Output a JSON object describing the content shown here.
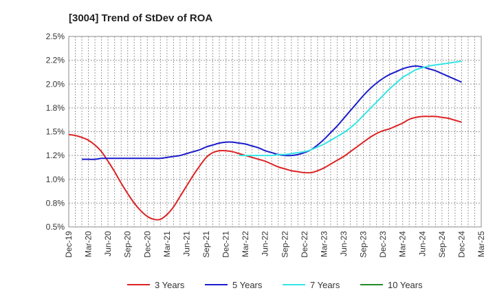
{
  "chart_data": {
    "type": "line",
    "title": "[3004]  Trend of StDev of ROA",
    "xlabel": "",
    "ylabel": "",
    "ylim": [
      0.5,
      2.5
    ],
    "yticks": [
      "0.5%",
      "0.8%",
      "1.0%",
      "1.2%",
      "1.5%",
      "1.8%",
      "2.0%",
      "2.2%",
      "2.5%"
    ],
    "xticks": [
      "Dec-19",
      "Mar-20",
      "Jun-20",
      "Sep-20",
      "Dec-20",
      "Mar-21",
      "Jun-21",
      "Sep-21",
      "Dec-21",
      "Mar-22",
      "Jun-22",
      "Sep-22",
      "Dec-22",
      "Mar-23",
      "Jun-23",
      "Sep-23",
      "Dec-23",
      "Mar-24",
      "Jun-24",
      "Sep-24",
      "Dec-24",
      "Mar-25"
    ],
    "grid": true,
    "legend_position": "bottom",
    "series": [
      {
        "name": "3 Years",
        "color": "#dd2222",
        "points": [
          [
            "Dec-19",
            1.47
          ],
          [
            "Jan-20",
            1.46
          ],
          [
            "Feb-20",
            1.44
          ],
          [
            "Mar-20",
            1.41
          ],
          [
            "Apr-20",
            1.36
          ],
          [
            "May-20",
            1.29
          ],
          [
            "Jun-20",
            1.19
          ],
          [
            "Jul-20",
            1.08
          ],
          [
            "Aug-20",
            0.96
          ],
          [
            "Sep-20",
            0.85
          ],
          [
            "Oct-20",
            0.75
          ],
          [
            "Nov-20",
            0.67
          ],
          [
            "Dec-20",
            0.61
          ],
          [
            "Jan-21",
            0.58
          ],
          [
            "Feb-21",
            0.58
          ],
          [
            "Mar-21",
            0.63
          ],
          [
            "Apr-21",
            0.71
          ],
          [
            "May-21",
            0.82
          ],
          [
            "Jun-21",
            0.93
          ],
          [
            "Jul-21",
            1.04
          ],
          [
            "Aug-21",
            1.14
          ],
          [
            "Sep-21",
            1.23
          ],
          [
            "Oct-21",
            1.28
          ],
          [
            "Nov-21",
            1.3
          ],
          [
            "Dec-21",
            1.3
          ],
          [
            "Jan-22",
            1.29
          ],
          [
            "Feb-22",
            1.27
          ],
          [
            "Mar-22",
            1.25
          ],
          [
            "Apr-22",
            1.23
          ],
          [
            "May-22",
            1.21
          ],
          [
            "Jun-22",
            1.19
          ],
          [
            "Jul-22",
            1.16
          ],
          [
            "Aug-22",
            1.13
          ],
          [
            "Sep-22",
            1.11
          ],
          [
            "Oct-22",
            1.09
          ],
          [
            "Nov-22",
            1.08
          ],
          [
            "Dec-22",
            1.07
          ],
          [
            "Jan-23",
            1.07
          ],
          [
            "Feb-23",
            1.09
          ],
          [
            "Mar-23",
            1.12
          ],
          [
            "Apr-23",
            1.16
          ],
          [
            "May-23",
            1.2
          ],
          [
            "Jun-23",
            1.24
          ],
          [
            "Jul-23",
            1.29
          ],
          [
            "Aug-23",
            1.34
          ],
          [
            "Sep-23",
            1.39
          ],
          [
            "Oct-23",
            1.44
          ],
          [
            "Nov-23",
            1.48
          ],
          [
            "Dec-23",
            1.51
          ],
          [
            "Jan-24",
            1.53
          ],
          [
            "Feb-24",
            1.56
          ],
          [
            "Mar-24",
            1.59
          ],
          [
            "Apr-24",
            1.63
          ],
          [
            "May-24",
            1.65
          ],
          [
            "Jun-24",
            1.66
          ],
          [
            "Jul-24",
            1.66
          ],
          [
            "Aug-24",
            1.66
          ],
          [
            "Sep-24",
            1.65
          ],
          [
            "Oct-24",
            1.64
          ],
          [
            "Nov-24",
            1.62
          ],
          [
            "Dec-24",
            1.6
          ]
        ]
      },
      {
        "name": "5 Years",
        "color": "#1a1acc",
        "points": [
          [
            "Feb-20",
            1.21
          ],
          [
            "Mar-20",
            1.21
          ],
          [
            "Apr-20",
            1.21
          ],
          [
            "May-20",
            1.22
          ],
          [
            "Jun-20",
            1.22
          ],
          [
            "Jul-20",
            1.22
          ],
          [
            "Aug-20",
            1.22
          ],
          [
            "Sep-20",
            1.22
          ],
          [
            "Oct-20",
            1.22
          ],
          [
            "Nov-20",
            1.22
          ],
          [
            "Dec-20",
            1.22
          ],
          [
            "Jan-21",
            1.22
          ],
          [
            "Feb-21",
            1.22
          ],
          [
            "Mar-21",
            1.23
          ],
          [
            "Apr-21",
            1.24
          ],
          [
            "May-21",
            1.25
          ],
          [
            "Jun-21",
            1.27
          ],
          [
            "Jul-21",
            1.29
          ],
          [
            "Aug-21",
            1.31
          ],
          [
            "Sep-21",
            1.34
          ],
          [
            "Oct-21",
            1.36
          ],
          [
            "Nov-21",
            1.38
          ],
          [
            "Dec-21",
            1.39
          ],
          [
            "Jan-22",
            1.39
          ],
          [
            "Feb-22",
            1.38
          ],
          [
            "Mar-22",
            1.37
          ],
          [
            "Apr-22",
            1.35
          ],
          [
            "May-22",
            1.33
          ],
          [
            "Jun-22",
            1.3
          ],
          [
            "Jul-22",
            1.28
          ],
          [
            "Aug-22",
            1.26
          ],
          [
            "Sep-22",
            1.25
          ],
          [
            "Oct-22",
            1.25
          ],
          [
            "Nov-22",
            1.26
          ],
          [
            "Dec-22",
            1.28
          ],
          [
            "Jan-23",
            1.31
          ],
          [
            "Feb-23",
            1.36
          ],
          [
            "Mar-23",
            1.42
          ],
          [
            "Apr-23",
            1.49
          ],
          [
            "May-23",
            1.56
          ],
          [
            "Jun-23",
            1.64
          ],
          [
            "Jul-23",
            1.72
          ],
          [
            "Aug-23",
            1.8
          ],
          [
            "Sep-23",
            1.88
          ],
          [
            "Oct-23",
            1.95
          ],
          [
            "Nov-23",
            2.01
          ],
          [
            "Dec-23",
            2.06
          ],
          [
            "Jan-24",
            2.1
          ],
          [
            "Feb-24",
            2.13
          ],
          [
            "Mar-24",
            2.16
          ],
          [
            "Apr-24",
            2.18
          ],
          [
            "May-24",
            2.19
          ],
          [
            "Jun-24",
            2.18
          ],
          [
            "Jul-24",
            2.16
          ],
          [
            "Aug-24",
            2.14
          ],
          [
            "Sep-24",
            2.11
          ],
          [
            "Oct-24",
            2.08
          ],
          [
            "Nov-24",
            2.05
          ],
          [
            "Dec-24",
            2.02
          ]
        ]
      },
      {
        "name": "7 Years",
        "color": "#33e5e5",
        "points": [
          [
            "Feb-22",
            1.25
          ],
          [
            "Mar-22",
            1.25
          ],
          [
            "Apr-22",
            1.25
          ],
          [
            "May-22",
            1.25
          ],
          [
            "Jun-22",
            1.25
          ],
          [
            "Jul-22",
            1.25
          ],
          [
            "Aug-22",
            1.26
          ],
          [
            "Sep-22",
            1.26
          ],
          [
            "Oct-22",
            1.27
          ],
          [
            "Nov-22",
            1.28
          ],
          [
            "Dec-22",
            1.29
          ],
          [
            "Jan-23",
            1.31
          ],
          [
            "Feb-23",
            1.34
          ],
          [
            "Mar-23",
            1.37
          ],
          [
            "Apr-23",
            1.41
          ],
          [
            "May-23",
            1.45
          ],
          [
            "Jun-23",
            1.49
          ],
          [
            "Jul-23",
            1.54
          ],
          [
            "Aug-23",
            1.6
          ],
          [
            "Sep-23",
            1.67
          ],
          [
            "Oct-23",
            1.74
          ],
          [
            "Nov-23",
            1.81
          ],
          [
            "Dec-23",
            1.88
          ],
          [
            "Jan-24",
            1.95
          ],
          [
            "Feb-24",
            2.01
          ],
          [
            "Mar-24",
            2.07
          ],
          [
            "Apr-24",
            2.11
          ],
          [
            "May-24",
            2.15
          ],
          [
            "Jun-24",
            2.17
          ],
          [
            "Jul-24",
            2.19
          ],
          [
            "Aug-24",
            2.2
          ],
          [
            "Sep-24",
            2.21
          ],
          [
            "Oct-24",
            2.22
          ],
          [
            "Nov-24",
            2.23
          ],
          [
            "Dec-24",
            2.24
          ]
        ]
      },
      {
        "name": "10 Years",
        "color": "#228b22",
        "points": []
      }
    ]
  }
}
